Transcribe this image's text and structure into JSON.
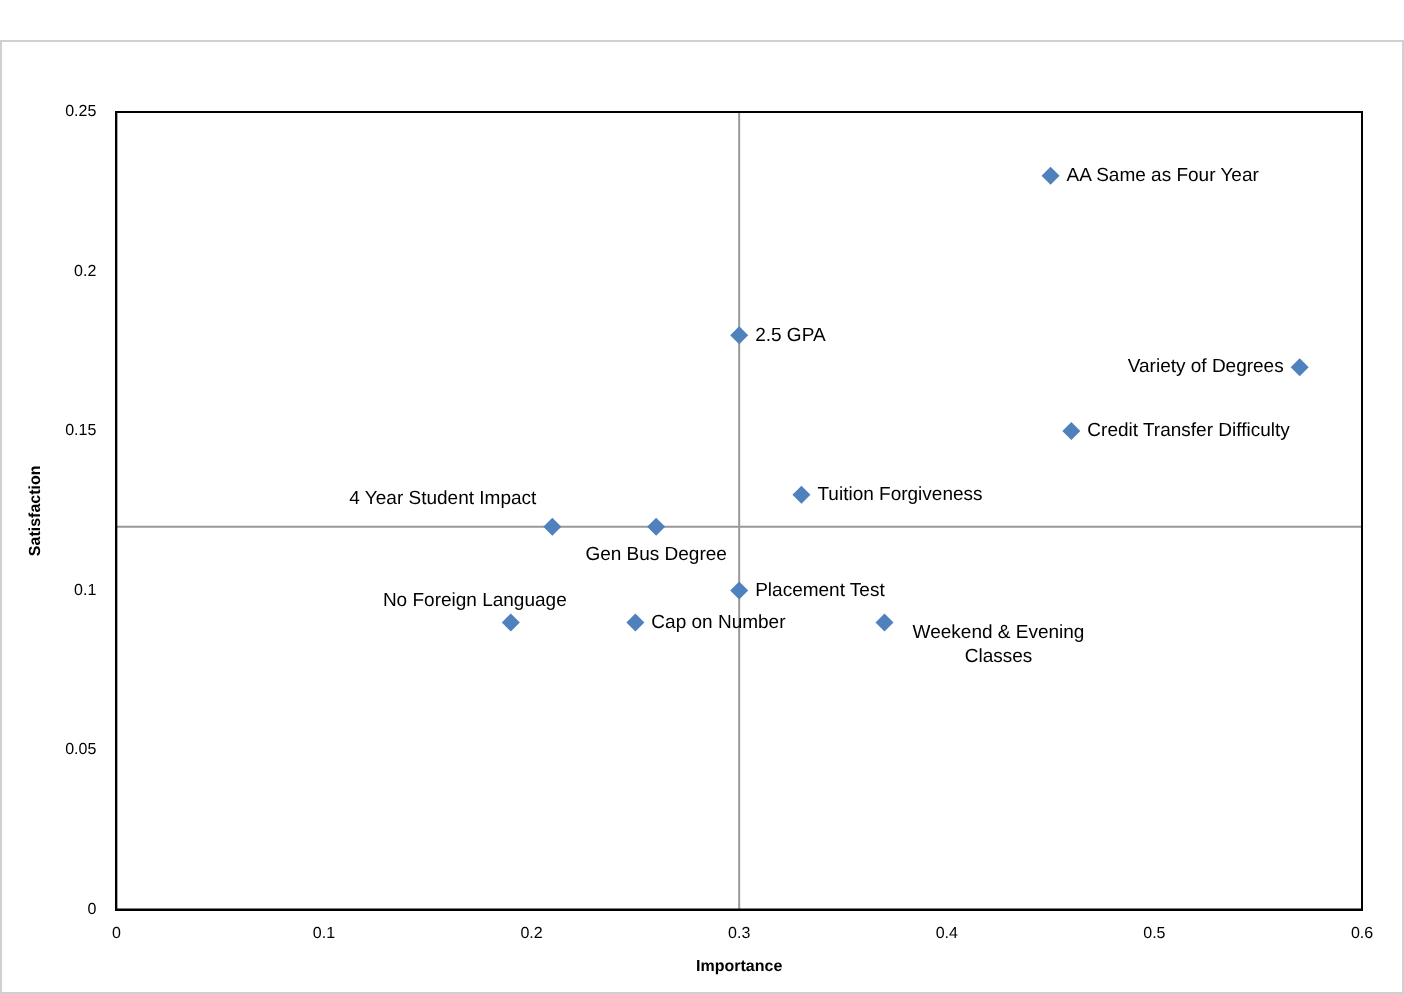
{
  "chart_data": {
    "type": "scatter",
    "xlabel": "Importance",
    "ylabel": "Satisfaction",
    "x": [
      0.45,
      0.3,
      0.57,
      0.46,
      0.33,
      0.21,
      0.26,
      0.3,
      0.19,
      0.25,
      0.37
    ],
    "values": [
      0.23,
      0.18,
      0.17,
      0.15,
      0.13,
      0.12,
      0.12,
      0.1,
      0.09,
      0.09,
      0.09
    ],
    "color": "#4f81bd",
    "marker": "diamond",
    "grid": false,
    "legend": false,
    "xlim": [
      0,
      0.6
    ],
    "xticks": [
      0,
      0.1,
      0.2,
      0.3,
      0.4,
      0.5,
      0.6
    ],
    "ylim": [
      0,
      0.25
    ],
    "yticks": [
      0,
      0.05,
      0.1,
      0.15,
      0.2,
      0.25
    ],
    "ref_lines": [
      {
        "axis": "x",
        "value": 0.3,
        "color": "#999999"
      },
      {
        "axis": "y",
        "value": 0.12,
        "color": "#999999"
      }
    ],
    "annotations": [
      {
        "text": "AA Same as Four Year",
        "x": 0.45,
        "y": 0.23
      },
      {
        "text": "2.5 GPA",
        "x": 0.3,
        "y": 0.18
      },
      {
        "text": "Variety of Degrees",
        "x": 0.57,
        "y": 0.17
      },
      {
        "text": "Credit Transfer Difficulty",
        "x": 0.46,
        "y": 0.15
      },
      {
        "text": "Tuition Forgiveness",
        "x": 0.33,
        "y": 0.13
      },
      {
        "text": "4 Year Student Impact",
        "x": 0.21,
        "y": 0.12
      },
      {
        "text": "Gen Bus Degree",
        "x": 0.26,
        "y": 0.12
      },
      {
        "text": "Placement Test",
        "x": 0.3,
        "y": 0.1
      },
      {
        "text": "No Foreign Language",
        "x": 0.19,
        "y": 0.09
      },
      {
        "text": "Cap on Number",
        "x": 0.25,
        "y": 0.09
      },
      {
        "text": "Weekend & Evening Classes",
        "x": 0.37,
        "y": 0.09
      }
    ]
  }
}
